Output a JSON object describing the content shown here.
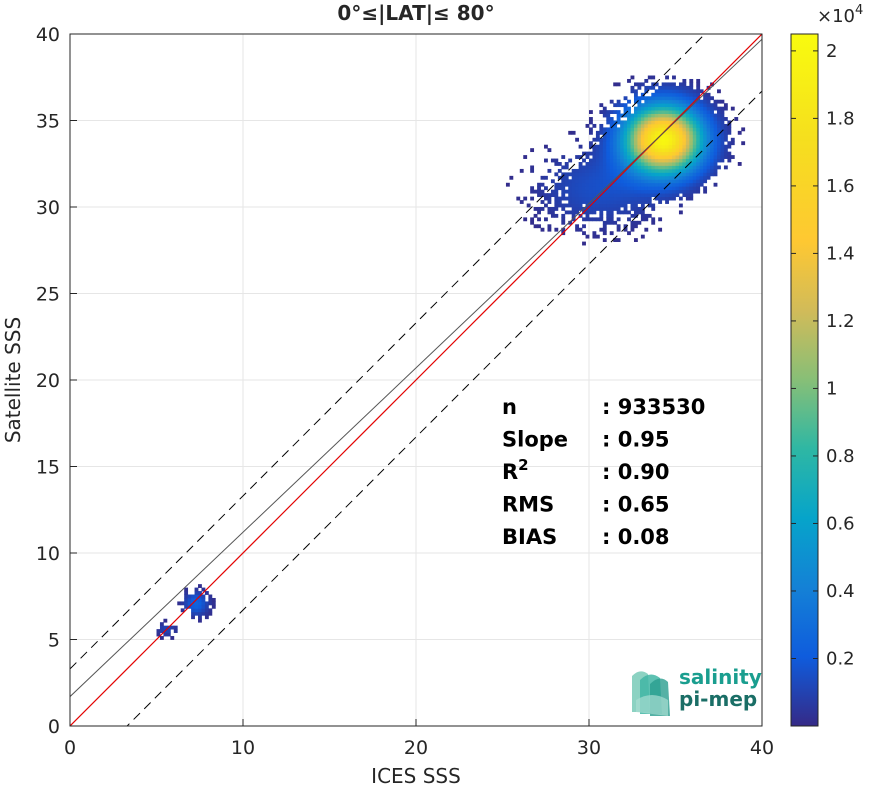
{
  "chart_data": {
    "type": "heatmap",
    "title": "0°≤|LAT|≤ 80°",
    "xlabel": "ICES SSS",
    "ylabel": "Satellite SSS",
    "xlim": [
      0,
      40
    ],
    "ylim": [
      0,
      40
    ],
    "xticks": [
      "0",
      "10",
      "20",
      "30",
      "40"
    ],
    "yticks": [
      "0",
      "5",
      "10",
      "15",
      "20",
      "25",
      "30",
      "35",
      "40"
    ],
    "grid": true,
    "colorbar": {
      "range": [
        0,
        2.05
      ],
      "multiplier": "×10",
      "exponent": "4",
      "ticks": [
        "0.2",
        "0.4",
        "0.6",
        "0.8",
        "1",
        "1.2",
        "1.4",
        "1.6",
        "1.8",
        "2"
      ],
      "colormap": "parula"
    },
    "lines": [
      {
        "kind": "one-to-one",
        "color": "#000000",
        "style": "solid",
        "slope": 1,
        "intercept": 0
      },
      {
        "kind": "upper-bound",
        "color": "#000000",
        "style": "dashed",
        "slope": 1,
        "intercept": 3.3
      },
      {
        "kind": "lower-bound",
        "color": "#000000",
        "style": "dashed",
        "slope": 1,
        "intercept": -3.3
      },
      {
        "kind": "regression-red",
        "color": "#ff0000",
        "style": "solid",
        "slope": 1.0,
        "intercept": 0
      },
      {
        "kind": "regression-gray",
        "color": "#555555",
        "style": "solid",
        "slope": 0.95,
        "intercept": 1.7
      }
    ],
    "density_clusters": [
      {
        "cx": 34.2,
        "cy": 33.8,
        "sx": 1.6,
        "sy": 1.4,
        "peak": 2.0
      },
      {
        "cx": 30.5,
        "cy": 31.0,
        "sx": 2.6,
        "sy": 1.6,
        "peak": 0.15
      },
      {
        "cx": 7.2,
        "cy": 7.0,
        "sx": 0.5,
        "sy": 0.5,
        "peak": 0.25
      },
      {
        "cx": 5.5,
        "cy": 5.5,
        "sx": 0.4,
        "sy": 0.3,
        "peak": 0.12
      }
    ],
    "stats": [
      {
        "label": "n",
        "sup": "",
        "value": ": 933530"
      },
      {
        "label": "Slope",
        "sup": "",
        "value": ": 0.95"
      },
      {
        "label": "R",
        "sup": "2",
        "value": ": 0.90"
      },
      {
        "label": "RMS",
        "sup": "",
        "value": ": 0.65"
      },
      {
        "label": "BIAS",
        "sup": "",
        "value": ": 0.08"
      }
    ]
  },
  "logo": {
    "line1": "salinity",
    "line2": "pi-mep",
    "color": "#1a9e8f"
  }
}
